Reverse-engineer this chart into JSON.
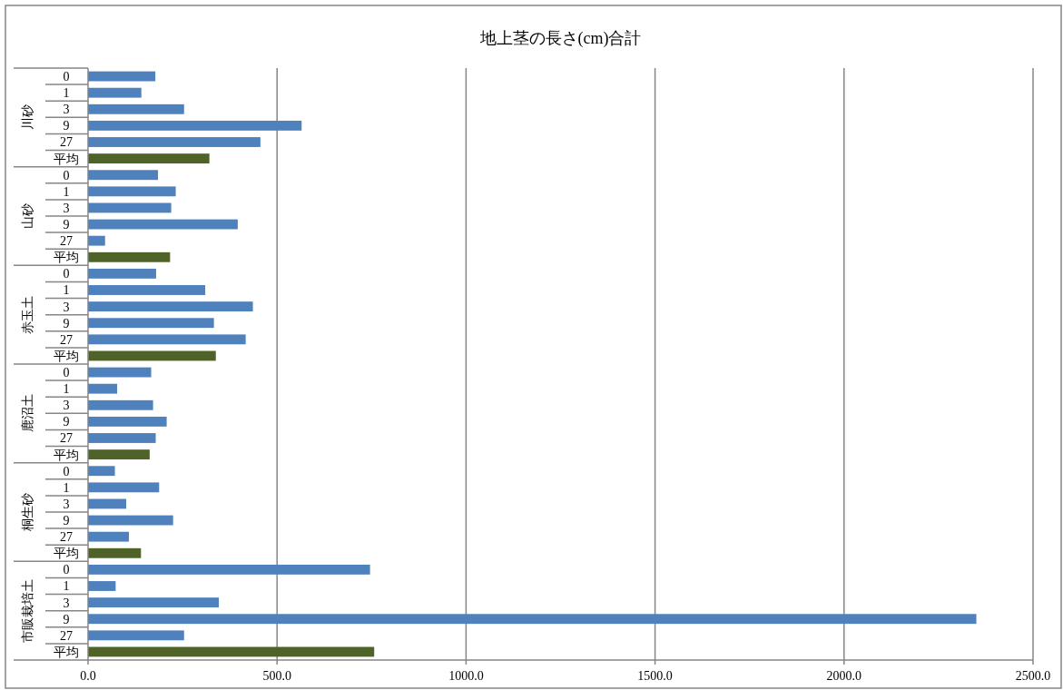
{
  "chart_data": {
    "type": "bar",
    "orientation": "horizontal",
    "title": "地上茎の長さ(cm)合計",
    "categories": [
      "0",
      "1",
      "3",
      "9",
      "27",
      "平均",
      "0",
      "1",
      "3",
      "9",
      "27",
      "平均",
      "0",
      "1",
      "3",
      "9",
      "27",
      "平均",
      "0",
      "1",
      "3",
      "9",
      "27",
      "平均",
      "0",
      "1",
      "3",
      "9",
      "27",
      "平均",
      "0",
      "1",
      "3",
      "9",
      "27",
      "平均"
    ],
    "values": [
      178,
      141,
      254,
      565,
      456,
      321,
      185,
      232,
      220,
      396,
      45,
      217,
      180,
      310,
      436,
      333,
      417,
      338,
      167,
      77,
      172,
      208,
      179,
      163,
      71,
      188,
      101,
      225,
      108,
      140,
      746,
      73,
      346,
      2350,
      254,
      757
    ],
    "colors": [
      "#4f81bd",
      "#4f81bd",
      "#4f81bd",
      "#4f81bd",
      "#4f81bd",
      "#4f6228",
      "#4f81bd",
      "#4f81bd",
      "#4f81bd",
      "#4f81bd",
      "#4f81bd",
      "#4f6228",
      "#4f81bd",
      "#4f81bd",
      "#4f81bd",
      "#4f81bd",
      "#4f81bd",
      "#4f6228",
      "#4f81bd",
      "#4f81bd",
      "#4f81bd",
      "#4f81bd",
      "#4f81bd",
      "#4f6228",
      "#4f81bd",
      "#4f81bd",
      "#4f81bd",
      "#4f81bd",
      "#4f81bd",
      "#4f6228",
      "#4f81bd",
      "#4f81bd",
      "#4f81bd",
      "#4f81bd",
      "#4f81bd",
      "#4f6228"
    ],
    "annotations": [
      "川砂",
      "山砂",
      "赤玉土",
      "鹿沼土",
      "桐生砂",
      "市販栽培土"
    ],
    "xlim": [
      0,
      2500
    ],
    "xticks": [
      {
        "value": 0,
        "label": "0.0"
      },
      {
        "value": 500,
        "label": "500.0"
      },
      {
        "value": 1000,
        "label": "1000.0"
      },
      {
        "value": 1500,
        "label": "1500.0"
      },
      {
        "value": 2000,
        "label": "2000.0"
      },
      {
        "value": 2500,
        "label": "2500.0"
      }
    ],
    "grid": "x"
  }
}
